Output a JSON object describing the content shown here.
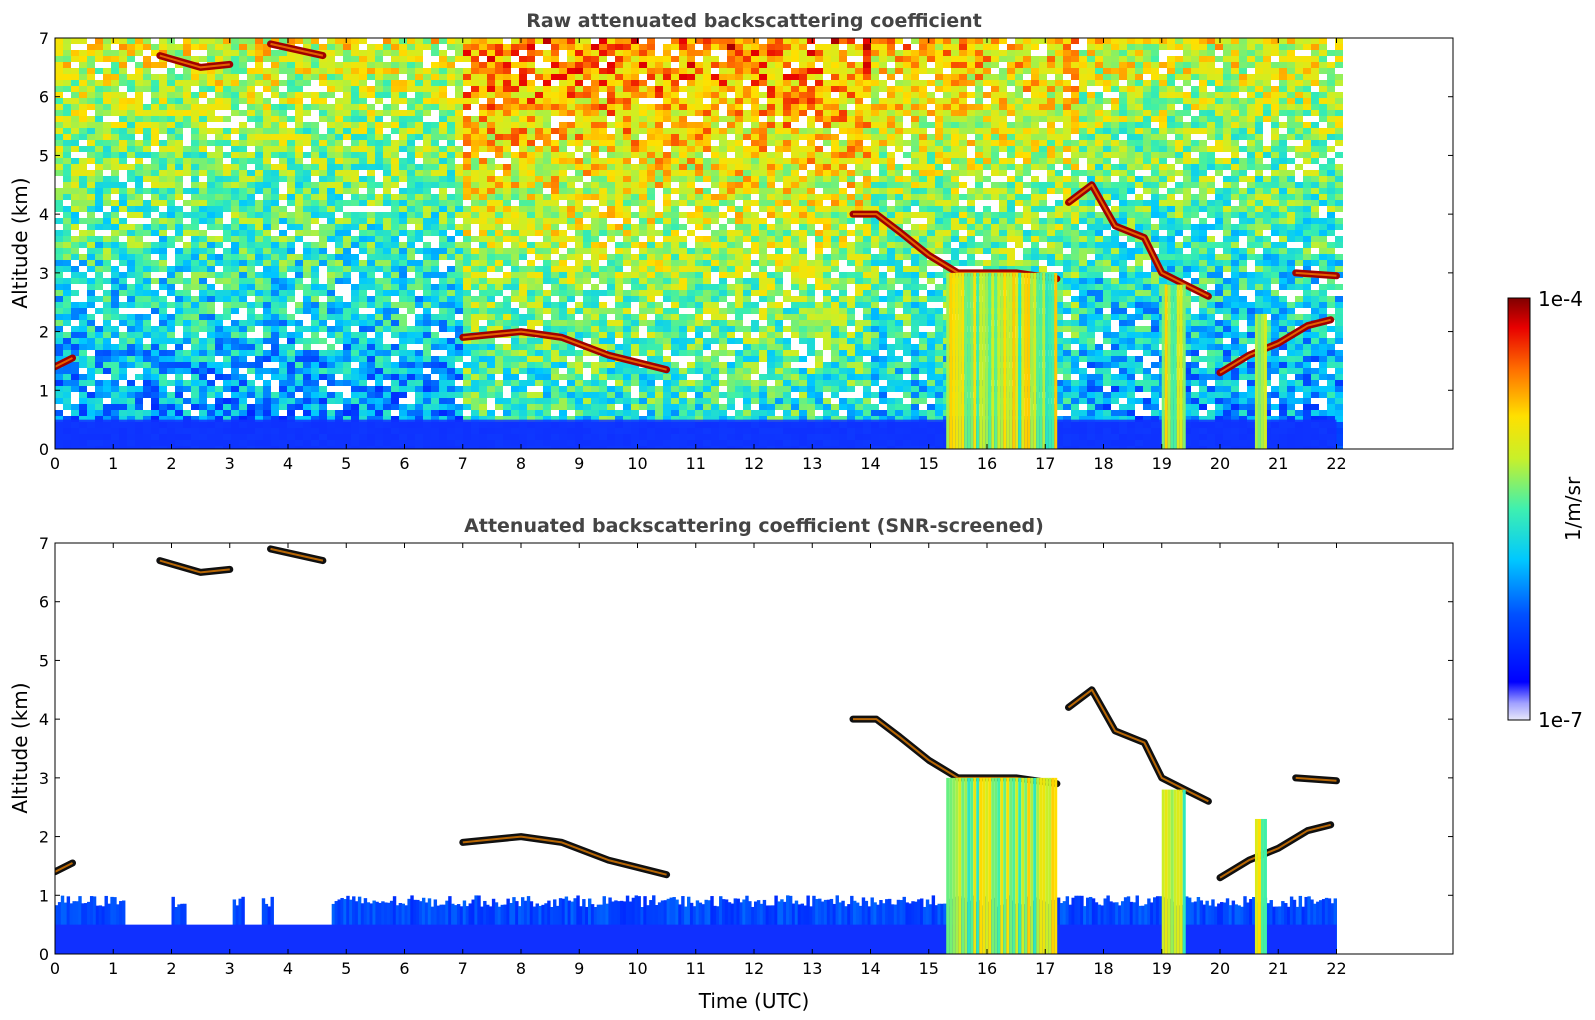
{
  "chart_data": [
    {
      "type": "heatmap",
      "title": "Raw attenuated backscattering coefficient",
      "xlabel": "",
      "ylabel": "Altitude (km)",
      "xlim": [
        0,
        24
      ],
      "ylim": [
        0,
        7
      ],
      "x_ticks": [
        "0",
        "1",
        "2",
        "3",
        "4",
        "5",
        "6",
        "7",
        "8",
        "9",
        "10",
        "11",
        "12",
        "13",
        "14",
        "15",
        "16",
        "17",
        "18",
        "19",
        "20",
        "21",
        "22"
      ],
      "y_ticks": [
        "0",
        "1",
        "2",
        "3",
        "4",
        "5",
        "6",
        "7"
      ],
      "data_extent_hours": [
        0,
        22
      ],
      "features": [
        {
          "kind": "boundary_layer",
          "x": [
            0,
            22
          ],
          "y_top": 0.5
        },
        {
          "kind": "cloud_layer",
          "points": [
            [
              7.0,
              1.9
            ],
            [
              8.0,
              2.0
            ],
            [
              8.7,
              1.9
            ],
            [
              9.5,
              1.6
            ],
            [
              10.5,
              1.35
            ]
          ]
        },
        {
          "kind": "cloud_layer",
          "points": [
            [
              1.8,
              6.7
            ],
            [
              2.5,
              6.5
            ],
            [
              3.0,
              6.55
            ]
          ]
        },
        {
          "kind": "cloud_layer",
          "points": [
            [
              3.7,
              6.9
            ],
            [
              4.6,
              6.7
            ]
          ]
        },
        {
          "kind": "cloud_layer",
          "points": [
            [
              0.0,
              1.4
            ],
            [
              0.3,
              1.55
            ]
          ]
        },
        {
          "kind": "cloud_layer",
          "points": [
            [
              13.7,
              4.0
            ],
            [
              14.1,
              4.0
            ],
            [
              14.5,
              3.7
            ],
            [
              15.0,
              3.3
            ],
            [
              15.5,
              3.0
            ],
            [
              16.5,
              3.0
            ],
            [
              17.2,
              2.9
            ]
          ]
        },
        {
          "kind": "cloud_layer",
          "points": [
            [
              17.4,
              4.2
            ],
            [
              17.8,
              4.5
            ],
            [
              18.2,
              3.8
            ],
            [
              18.7,
              3.6
            ],
            [
              19.0,
              3.0
            ],
            [
              19.4,
              2.8
            ],
            [
              19.8,
              2.6
            ]
          ]
        },
        {
          "kind": "cloud_layer",
          "points": [
            [
              20.0,
              1.3
            ],
            [
              20.5,
              1.6
            ],
            [
              21.0,
              1.8
            ],
            [
              21.5,
              2.1
            ],
            [
              21.9,
              2.2
            ]
          ]
        },
        {
          "kind": "cloud_layer",
          "points": [
            [
              21.3,
              3.0
            ],
            [
              22.0,
              2.95
            ]
          ]
        },
        {
          "kind": "precipitation",
          "x": [
            15.3,
            17.2
          ],
          "y_top": 3.0
        },
        {
          "kind": "precipitation",
          "x": [
            19.0,
            19.4
          ],
          "y_top": 2.8
        },
        {
          "kind": "precipitation",
          "x": [
            20.6,
            20.8
          ],
          "y_top": 2.3
        }
      ]
    },
    {
      "type": "heatmap",
      "title": "Attenuated backscattering coefficient (SNR-screened)",
      "xlabel": "Time (UTC)",
      "ylabel": "Altitude (km)",
      "xlim": [
        0,
        24
      ],
      "ylim": [
        0,
        7
      ],
      "x_ticks": [
        "0",
        "1",
        "2",
        "3",
        "4",
        "5",
        "6",
        "7",
        "8",
        "9",
        "10",
        "11",
        "12",
        "13",
        "14",
        "15",
        "16",
        "17",
        "18",
        "19",
        "20",
        "21",
        "22"
      ],
      "y_ticks": [
        "0",
        "1",
        "2",
        "3",
        "4",
        "5",
        "6",
        "7"
      ],
      "data_extent_hours": [
        0,
        22
      ]
    }
  ],
  "colorbar": {
    "label": "1/m/sr",
    "max_label": "1e-4",
    "min_label": "1e-7",
    "scale": "log",
    "colormap": "jet",
    "range": [
      1e-07,
      0.0001
    ]
  }
}
